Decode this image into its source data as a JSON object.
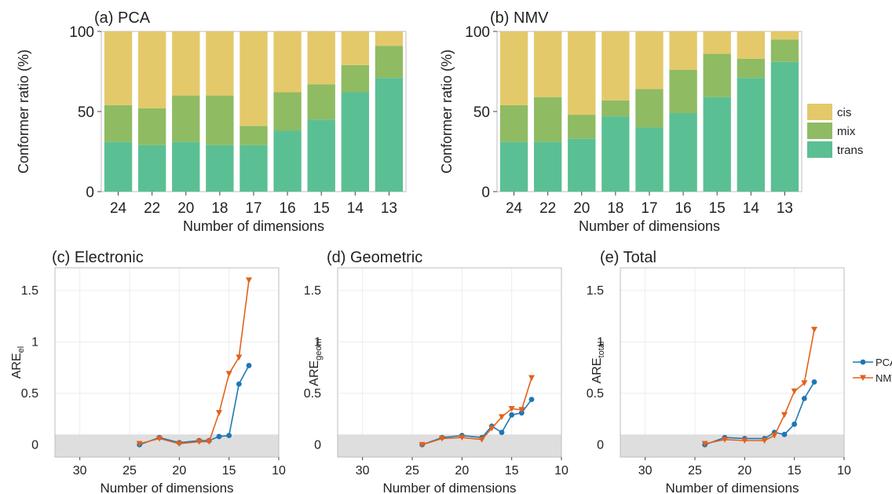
{
  "chart_data": [
    {
      "type": "bar",
      "stacked": true,
      "title": "(a) PCA",
      "xlabel": "Number of dimensions",
      "ylabel": "Conformer ratio (%)",
      "ylim": [
        0,
        100
      ],
      "yticks": [
        0,
        50,
        100
      ],
      "categories": [
        "24",
        "22",
        "20",
        "18",
        "17",
        "16",
        "15",
        "14",
        "13"
      ],
      "series": [
        {
          "name": "trans",
          "color": "#5bbf94",
          "values": [
            31,
            29,
            31,
            29,
            29,
            38,
            45,
            62,
            71
          ]
        },
        {
          "name": "mix",
          "color": "#8fbb63",
          "values": [
            23,
            23,
            29,
            31,
            12,
            24,
            22,
            17,
            20
          ]
        },
        {
          "name": "cis",
          "color": "#e4c96b",
          "values": [
            46,
            48,
            40,
            40,
            59,
            38,
            33,
            21,
            9
          ]
        }
      ]
    },
    {
      "type": "bar",
      "stacked": true,
      "title": "(b) NMV",
      "xlabel": "Number of dimensions",
      "ylabel": "Conformer ratio (%)",
      "ylim": [
        0,
        100
      ],
      "yticks": [
        0,
        50,
        100
      ],
      "categories": [
        "24",
        "22",
        "20",
        "18",
        "17",
        "16",
        "15",
        "14",
        "13"
      ],
      "series": [
        {
          "name": "trans",
          "color": "#5bbf94",
          "values": [
            31,
            31,
            33,
            47,
            40,
            49,
            59,
            71,
            81
          ]
        },
        {
          "name": "mix",
          "color": "#8fbb63",
          "values": [
            23,
            28,
            15,
            10,
            24,
            27,
            27,
            12,
            14
          ]
        },
        {
          "name": "cis",
          "color": "#e4c96b",
          "values": [
            46,
            41,
            52,
            43,
            36,
            24,
            14,
            17,
            5
          ]
        }
      ],
      "legend": {
        "entries": [
          "cis",
          "mix",
          "trans"
        ],
        "placement": "right"
      }
    },
    {
      "type": "line",
      "title": "(c) Electronic",
      "xlabel": "Number of dimensions",
      "ylabel": {
        "base": "ARE",
        "sub": "el"
      },
      "xlim": [
        32.5,
        10
      ],
      "ylim": [
        -0.12,
        1.72
      ],
      "xticks": [
        30,
        25,
        20,
        15,
        10
      ],
      "yticks": [
        0,
        0.5,
        1,
        1.5
      ],
      "shaded_band": [
        -0.12,
        0.1
      ],
      "series": [
        {
          "name": "PCA",
          "x": [
            24,
            22,
            20,
            18,
            17,
            16,
            15,
            14,
            13
          ],
          "y": [
            0.0,
            0.07,
            0.02,
            0.04,
            0.04,
            0.08,
            0.09,
            0.59,
            0.77
          ]
        },
        {
          "name": "NMV",
          "x": [
            24,
            22,
            20,
            18,
            17,
            16,
            15,
            14,
            13
          ],
          "y": [
            0.01,
            0.06,
            0.01,
            0.03,
            0.03,
            0.31,
            0.69,
            0.85,
            1.6
          ]
        }
      ]
    },
    {
      "type": "line",
      "title": "(d) Geometric",
      "xlabel": "Number of dimensions",
      "ylabel": {
        "base": "ARE",
        "sub": "geom"
      },
      "xlim": [
        32.5,
        10
      ],
      "ylim": [
        -0.12,
        1.72
      ],
      "xticks": [
        30,
        25,
        20,
        15,
        10
      ],
      "yticks": [
        0,
        0.5,
        1,
        1.5
      ],
      "shaded_band": [
        -0.12,
        0.1
      ],
      "series": [
        {
          "name": "PCA",
          "x": [
            24,
            22,
            20,
            18,
            17,
            16,
            15,
            14,
            13
          ],
          "y": [
            0.0,
            0.07,
            0.09,
            0.07,
            0.18,
            0.12,
            0.29,
            0.31,
            0.44
          ]
        },
        {
          "name": "NMV",
          "x": [
            24,
            22,
            20,
            18,
            17,
            16,
            15,
            14,
            13
          ],
          "y": [
            0.0,
            0.06,
            0.07,
            0.05,
            0.16,
            0.27,
            0.35,
            0.34,
            0.65
          ]
        }
      ]
    },
    {
      "type": "line",
      "title": "(e) Total",
      "xlabel": "Number of dimensions",
      "ylabel": {
        "base": "ARE",
        "sub": "total"
      },
      "xlim": [
        32.5,
        10
      ],
      "ylim": [
        -0.12,
        1.72
      ],
      "xticks": [
        30,
        25,
        20,
        15,
        10
      ],
      "yticks": [
        0,
        0.5,
        1,
        1.5
      ],
      "shaded_band": [
        -0.12,
        0.1
      ],
      "series": [
        {
          "name": "PCA",
          "x": [
            24,
            22,
            20,
            18,
            17,
            16,
            15,
            14,
            13
          ],
          "y": [
            0.0,
            0.07,
            0.06,
            0.06,
            0.12,
            0.1,
            0.2,
            0.45,
            0.61
          ]
        },
        {
          "name": "NMV",
          "x": [
            24,
            22,
            20,
            18,
            17,
            16,
            15,
            14,
            13
          ],
          "y": [
            0.01,
            0.05,
            0.04,
            0.04,
            0.09,
            0.29,
            0.52,
            0.6,
            1.12
          ]
        }
      ],
      "legend": {
        "entries": [
          "PCA",
          "NMV"
        ],
        "placement": "right"
      }
    }
  ],
  "colors": {
    "PCA": "#1f77b4",
    "NMV": "#e2621b",
    "band": "#dedede",
    "grid": "#ececec"
  }
}
